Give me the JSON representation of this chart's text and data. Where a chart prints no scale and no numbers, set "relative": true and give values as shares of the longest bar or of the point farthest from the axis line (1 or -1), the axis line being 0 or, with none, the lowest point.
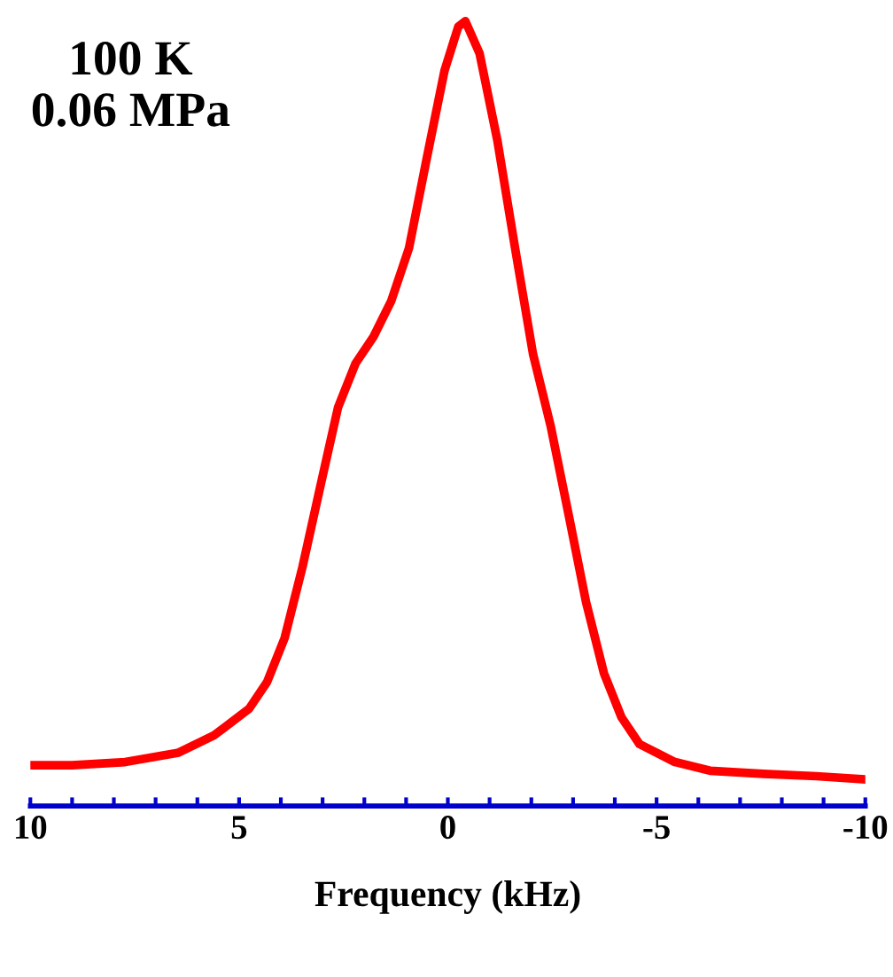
{
  "chart_data": {
    "type": "line",
    "relative": true,
    "xlabel": "Frequency (kHz)",
    "annotations": [
      "100 K\n0.06 MPa"
    ],
    "xlim": [
      10,
      -10
    ],
    "xticks": [
      10,
      {
        "value": 9,
        "label": null
      },
      {
        "value": 8,
        "label": null
      },
      {
        "value": 7,
        "label": null
      },
      {
        "value": 6,
        "label": null
      },
      5,
      {
        "value": 4,
        "label": null
      },
      {
        "value": 3,
        "label": null
      },
      {
        "value": 2,
        "label": null
      },
      {
        "value": 1,
        "label": null
      },
      0,
      {
        "value": -1,
        "label": null
      },
      {
        "value": -2,
        "label": null
      },
      {
        "value": -3,
        "label": null
      },
      {
        "value": -4,
        "label": null
      },
      -5,
      {
        "value": -6,
        "label": null
      },
      {
        "value": -7,
        "label": null
      },
      {
        "value": -8,
        "label": null
      },
      {
        "value": -9,
        "label": null
      },
      -10
    ],
    "grid": false,
    "legend": false,
    "tick_labels": "x",
    "series": [
      {
        "color": "#ff0000",
        "x": [
          10.0,
          9.0,
          7.73,
          6.45,
          5.6,
          4.76,
          4.33,
          3.91,
          3.48,
          3.06,
          2.63,
          2.21,
          1.78,
          1.36,
          0.93,
          0.51,
          0.08,
          -0.25,
          -0.42,
          -0.76,
          -1.19,
          -1.61,
          -2.04,
          -2.46,
          -2.89,
          -3.31,
          -3.74,
          -4.16,
          -4.59,
          -5.44,
          -6.28,
          -7.56,
          -8.83,
          -10.0
        ],
        "values": [
          0.052,
          0.052,
          0.056,
          0.068,
          0.09,
          0.124,
          0.158,
          0.214,
          0.305,
          0.406,
          0.508,
          0.564,
          0.598,
          0.643,
          0.711,
          0.824,
          0.937,
          0.993,
          1.0,
          0.959,
          0.847,
          0.711,
          0.576,
          0.485,
          0.372,
          0.26,
          0.169,
          0.113,
          0.079,
          0.056,
          0.045,
          0.041,
          0.038,
          0.034
        ]
      }
    ]
  }
}
